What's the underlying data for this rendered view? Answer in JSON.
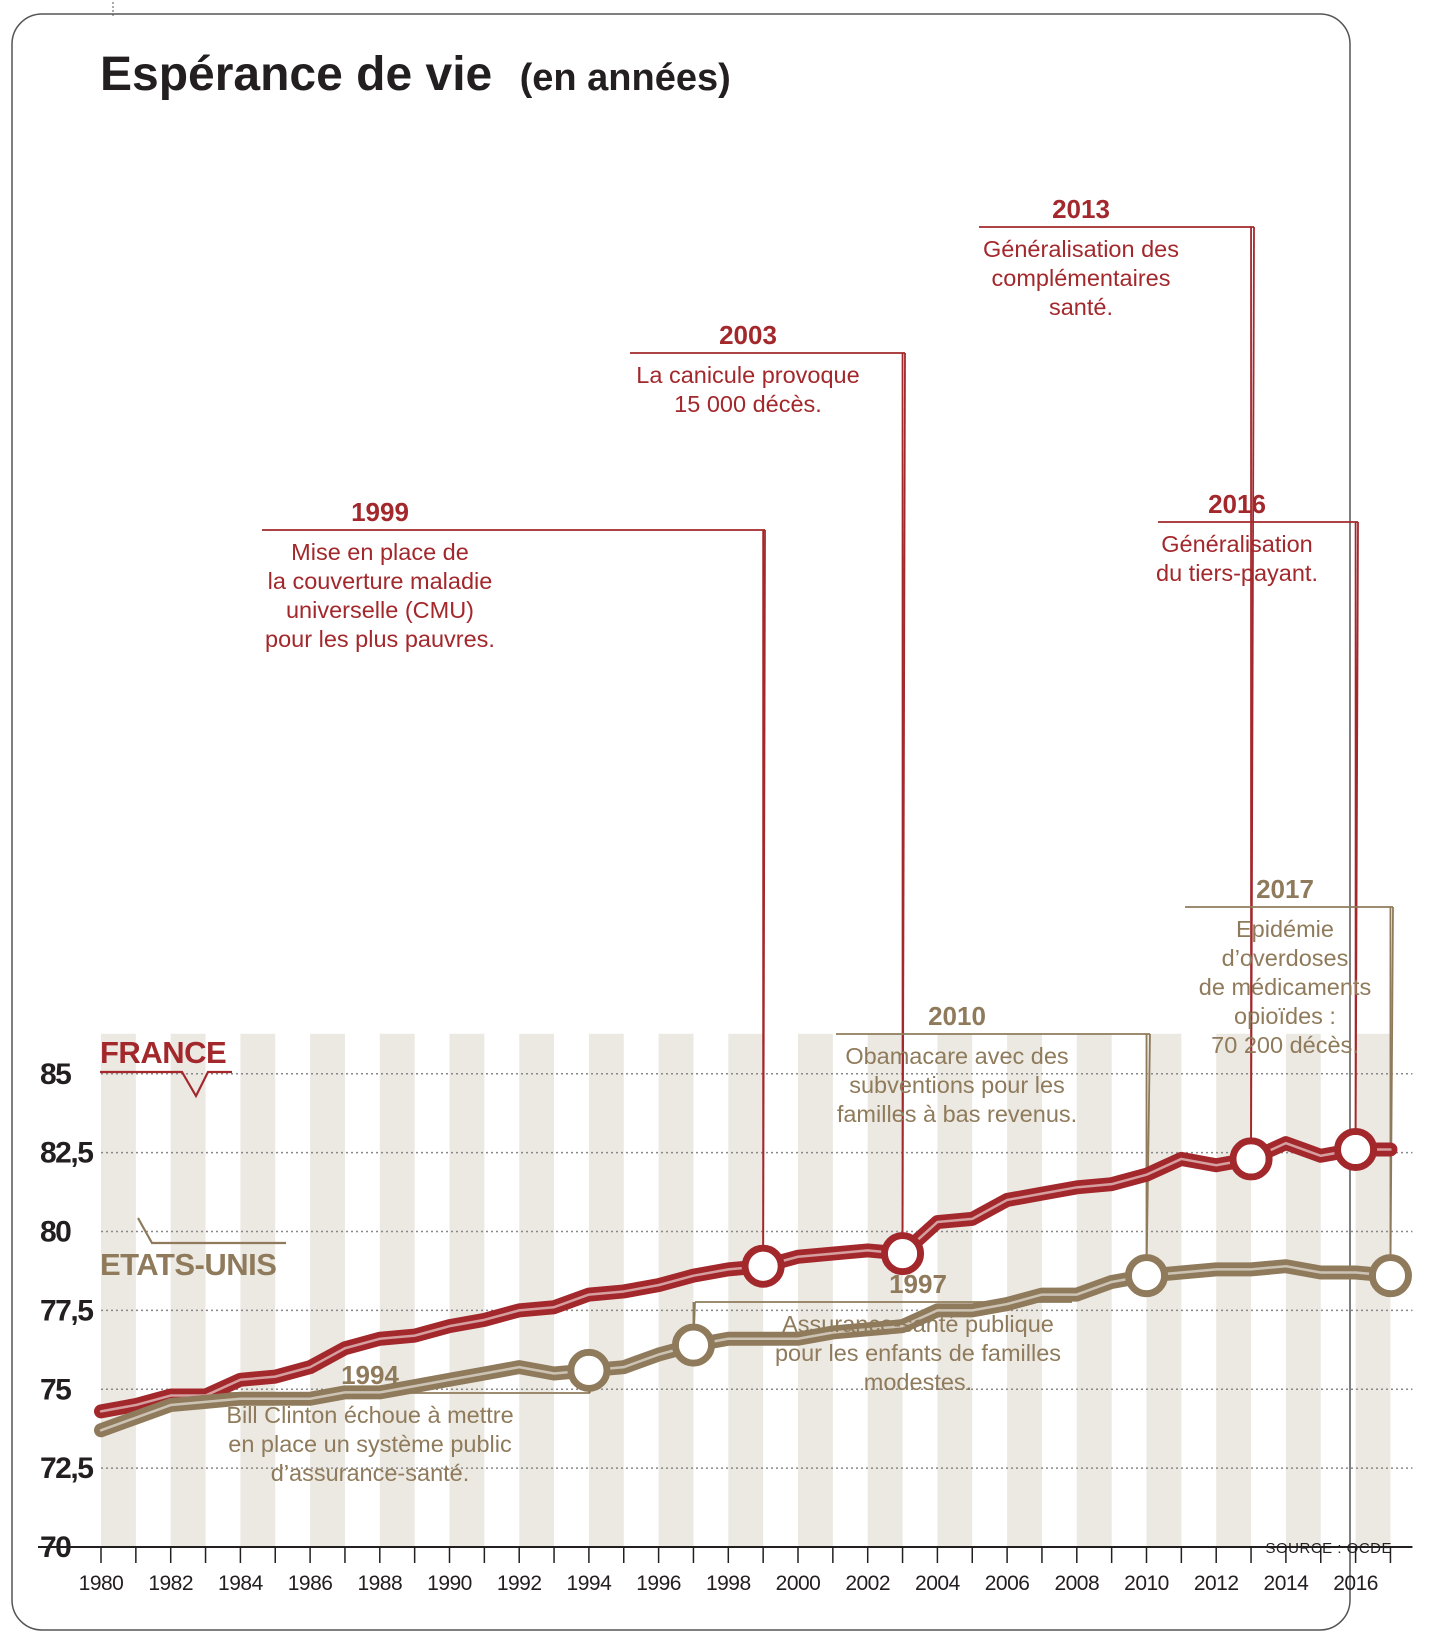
{
  "chart_data": {
    "type": "line",
    "title": "Espérance de vie",
    "title_unit": "(en années)",
    "source": "SOURCE : OCDE",
    "ylim": [
      70,
      85
    ],
    "yticks": [
      "85",
      "82,5",
      "80",
      "77,5",
      "75",
      "72,5",
      "70"
    ],
    "xlim": [
      1980,
      2017
    ],
    "xticks": [
      "1980",
      "1982",
      "1984",
      "1986",
      "1988",
      "1990",
      "1992",
      "1994",
      "1996",
      "1998",
      "2000",
      "2002",
      "2004",
      "2006",
      "2008",
      "2010",
      "2012",
      "2014",
      "2016"
    ],
    "grid": true,
    "series": [
      {
        "name": "FRANCE",
        "color": "#a3282c",
        "x": [
          1980,
          1981,
          1982,
          1983,
          1984,
          1985,
          1986,
          1987,
          1988,
          1989,
          1990,
          1991,
          1992,
          1993,
          1994,
          1995,
          1996,
          1997,
          1998,
          1999,
          2000,
          2001,
          2002,
          2003,
          2004,
          2005,
          2006,
          2007,
          2008,
          2009,
          2010,
          2011,
          2012,
          2013,
          2014,
          2015,
          2016,
          2017
        ],
        "y": [
          74.3,
          74.5,
          74.8,
          74.8,
          75.3,
          75.4,
          75.7,
          76.3,
          76.6,
          76.7,
          77.0,
          77.2,
          77.5,
          77.6,
          78.0,
          78.1,
          78.3,
          78.6,
          78.8,
          78.9,
          79.2,
          79.3,
          79.4,
          79.3,
          80.3,
          80.4,
          81.0,
          81.2,
          81.4,
          81.5,
          81.8,
          82.3,
          82.1,
          82.3,
          82.8,
          82.4,
          82.6,
          82.6
        ]
      },
      {
        "name": "ETATS-UNIS",
        "color": "#8f7b5b",
        "x": [
          1980,
          1981,
          1982,
          1983,
          1984,
          1985,
          1986,
          1987,
          1988,
          1989,
          1990,
          1991,
          1992,
          1993,
          1994,
          1995,
          1996,
          1997,
          1998,
          1999,
          2000,
          2001,
          2002,
          2003,
          2004,
          2005,
          2006,
          2007,
          2008,
          2009,
          2010,
          2011,
          2012,
          2013,
          2014,
          2015,
          2016,
          2017
        ],
        "y": [
          73.7,
          74.1,
          74.5,
          74.6,
          74.7,
          74.7,
          74.7,
          74.9,
          74.9,
          75.1,
          75.3,
          75.5,
          75.7,
          75.5,
          75.6,
          75.7,
          76.1,
          76.4,
          76.6,
          76.6,
          76.6,
          76.8,
          76.9,
          77.0,
          77.5,
          77.5,
          77.7,
          78.0,
          78.0,
          78.4,
          78.6,
          78.7,
          78.8,
          78.8,
          78.9,
          78.7,
          78.7,
          78.6
        ]
      }
    ],
    "annotations": [
      {
        "id": "fr-1999",
        "series": "FRANCE",
        "x": 1999,
        "year": "1999",
        "lines": [
          "Mise en place de",
          "la couverture maladie",
          "universelle (CMU)",
          "pour les plus pauvres."
        ]
      },
      {
        "id": "fr-2003",
        "series": "FRANCE",
        "x": 2003,
        "year": "2003",
        "lines": [
          "La canicule provoque",
          "15 000 décès."
        ]
      },
      {
        "id": "fr-2013",
        "series": "FRANCE",
        "x": 2013,
        "year": "2013",
        "lines": [
          "Généralisation des",
          "complémentaires",
          "santé."
        ]
      },
      {
        "id": "fr-2016",
        "series": "FRANCE",
        "x": 2016,
        "year": "2016",
        "lines": [
          "Généralisation",
          "du tiers-payant."
        ]
      },
      {
        "id": "us-1994",
        "series": "ETATS-UNIS",
        "x": 1994,
        "year": "1994",
        "lines": [
          "Bill Clinton échoue à mettre",
          "en place un système public",
          "d’assurance-santé."
        ]
      },
      {
        "id": "us-1997",
        "series": "ETATS-UNIS",
        "x": 1997,
        "year": "1997",
        "lines": [
          "Assurance-santé publique",
          "pour les enfants de familles",
          "modestes."
        ]
      },
      {
        "id": "us-2010",
        "series": "ETATS-UNIS",
        "x": 2010,
        "year": "2010",
        "lines": [
          "Obamacare avec des",
          "subventions pour les",
          "familles à bas revenus."
        ]
      },
      {
        "id": "us-2017",
        "series": "ETATS-UNIS",
        "x": 2017,
        "year": "2017",
        "lines": [
          "Epidémie",
          "d’overdoses",
          "de médicaments",
          "opioïdes :",
          "70 200 décès."
        ]
      }
    ]
  }
}
